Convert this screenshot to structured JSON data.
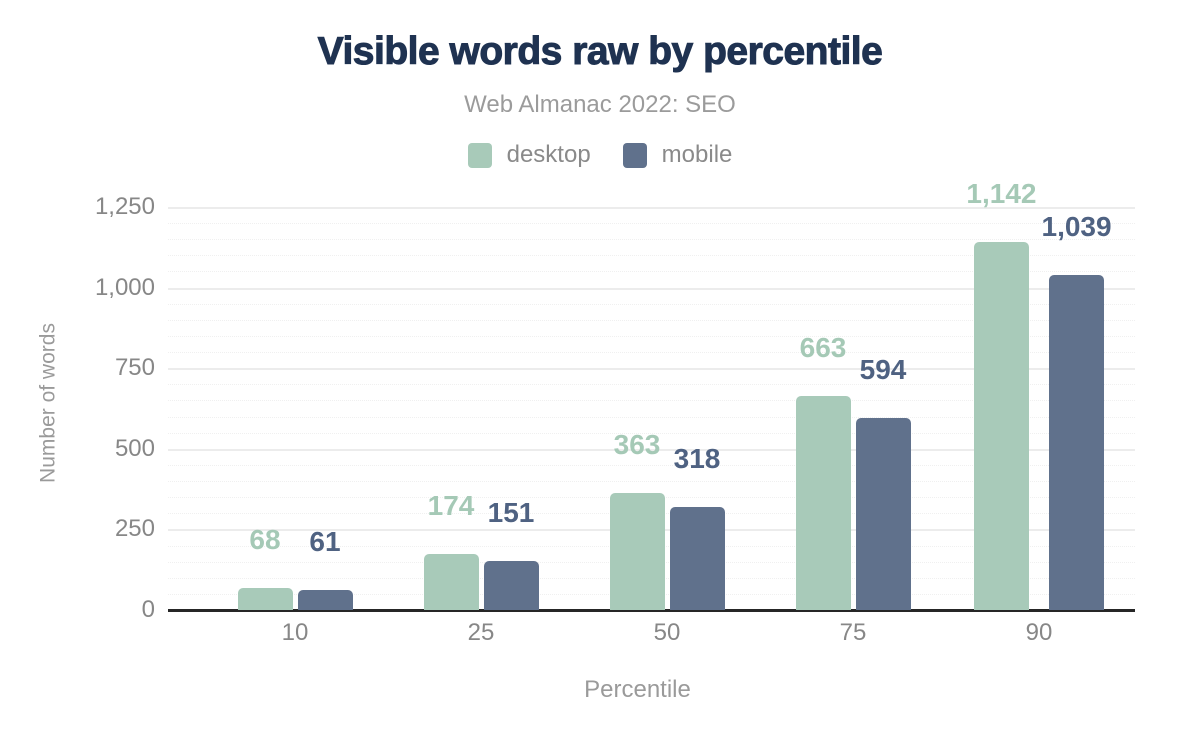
{
  "chart_data": {
    "type": "bar",
    "title": "Visible words raw by percentile",
    "subtitle": "Web Almanac 2022: SEO",
    "xlabel": "Percentile",
    "ylabel": "Number of words",
    "categories": [
      "10",
      "25",
      "50",
      "75",
      "90"
    ],
    "series": [
      {
        "name": "desktop",
        "values": [
          68,
          174,
          363,
          663,
          1142
        ],
        "labels": [
          "68",
          "174",
          "363",
          "663",
          "1,142"
        ],
        "color": "#a8cab9",
        "label_color": "#a5c9b6"
      },
      {
        "name": "mobile",
        "values": [
          61,
          151,
          318,
          594,
          1039
        ],
        "labels": [
          "61",
          "151",
          "318",
          "594",
          "1,039"
        ],
        "color": "#60718c",
        "label_color": "#4f6282"
      }
    ],
    "y_axis": {
      "min": 0,
      "max": 1250,
      "major_step": 250,
      "minor_step": 50,
      "tick_labels": [
        "0",
        "250",
        "500",
        "750",
        "1,000",
        "1,250"
      ]
    },
    "ylim": [
      0,
      1318
    ],
    "grid": true,
    "legend_position": "top"
  },
  "colors": {
    "background": "#ffffff",
    "title": "#1f3251",
    "subtitle": "#9b9b9b",
    "legend_text": "#8a8a8a",
    "axis_tick_text": "#878787",
    "axis_title_text": "#9a9a9a",
    "axis_line": "#262626",
    "grid_major": "#ececec",
    "grid_minor": "#f0f0f0"
  }
}
